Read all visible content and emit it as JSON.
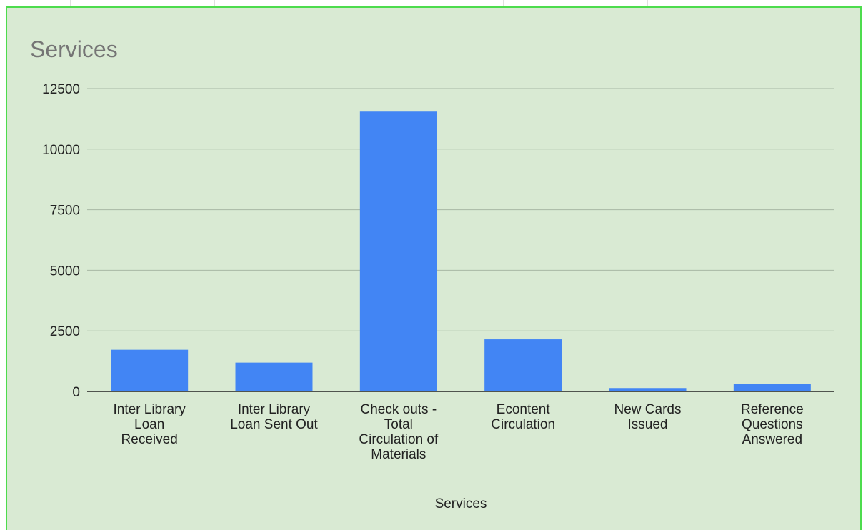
{
  "chart_data": {
    "type": "bar",
    "title": "Services",
    "xlabel": "Services",
    "ylabel": "",
    "ylim": [
      0,
      12500
    ],
    "yticks": [
      "0",
      "2500",
      "5000",
      "7500",
      "10000",
      "12500"
    ],
    "grid": true,
    "legend": "none",
    "bar_color": "#4285f4",
    "categories": [
      "Inter Library Loan Received",
      "Inter Library Loan Sent Out",
      "Check outs - Total Circulation of Materials",
      "Econtent Circulation",
      "New Cards Issued",
      "Reference Questions Answered"
    ],
    "category_lines": [
      [
        "Inter Library",
        "Loan",
        "Received"
      ],
      [
        "Inter Library",
        "Loan Sent Out"
      ],
      [
        "Check outs -",
        "Total",
        "Circulation of",
        "Materials"
      ],
      [
        "Econtent",
        "Circulation"
      ],
      [
        "New Cards",
        "Issued"
      ],
      [
        "Reference",
        "Questions",
        "Answered"
      ]
    ],
    "values": [
      1720,
      1190,
      11550,
      2150,
      140,
      300
    ]
  },
  "colors": {
    "background": "#d9ead3",
    "border": "#4ddc4d",
    "gridline": "#a8b8a4",
    "axis": "#222222"
  }
}
